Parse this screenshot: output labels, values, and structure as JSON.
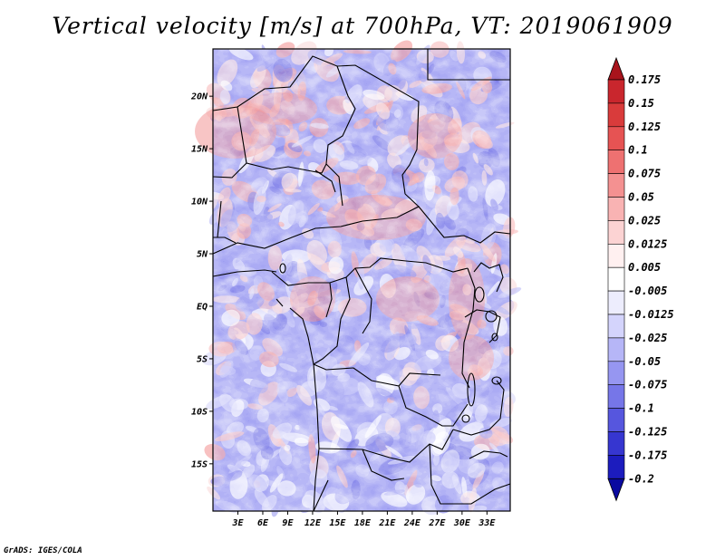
{
  "title": "Vertical velocity [m/s] at 700hPa, VT: 2019061909",
  "credit": "GrADS: IGES/COLA",
  "chart_data": {
    "type": "heatmap",
    "title": "Vertical velocity [m/s] at 700hPa, VT: 2019061909",
    "variable": "Vertical velocity",
    "units": "m/s",
    "level": "700hPa",
    "valid_time": "2019061909",
    "x_domain": [
      0,
      35.8
    ],
    "y_domain": [
      -19.5,
      24.5
    ],
    "x_ticks": [
      3,
      6,
      9,
      12,
      15,
      18,
      21,
      24,
      27,
      30,
      33
    ],
    "x_tick_labels": [
      "3E",
      "6E",
      "9E",
      "12E",
      "15E",
      "18E",
      "21E",
      "24E",
      "27E",
      "30E",
      "33E"
    ],
    "y_ticks": [
      20,
      15,
      10,
      5,
      0,
      -5,
      -10,
      -15
    ],
    "y_tick_labels": [
      "20N",
      "15N",
      "10N",
      "5N",
      "EQ",
      "5S",
      "10S",
      "15S"
    ],
    "colorbar": {
      "levels": [
        "0.175",
        "0.15",
        "0.125",
        "0.1",
        "0.075",
        "0.05",
        "0.025",
        "0.0125",
        "0.005",
        "-0.005",
        "-0.0125",
        "-0.025",
        "-0.05",
        "-0.075",
        "-0.1",
        "-0.125",
        "-0.175",
        "-0.2"
      ],
      "colors": [
        "#a8141c",
        "#c9262d",
        "#d93b3b",
        "#e65353",
        "#ee7171",
        "#f49191",
        "#f9b3b3",
        "#fcd3d3",
        "#fff0f0",
        "#ffffff",
        "#ededfd",
        "#d4d4fc",
        "#b6b6f7",
        "#9696f1",
        "#7676e8",
        "#5656de",
        "#3636d0",
        "#1c1cbe",
        "#0a0aa0"
      ],
      "extend": "both"
    }
  }
}
